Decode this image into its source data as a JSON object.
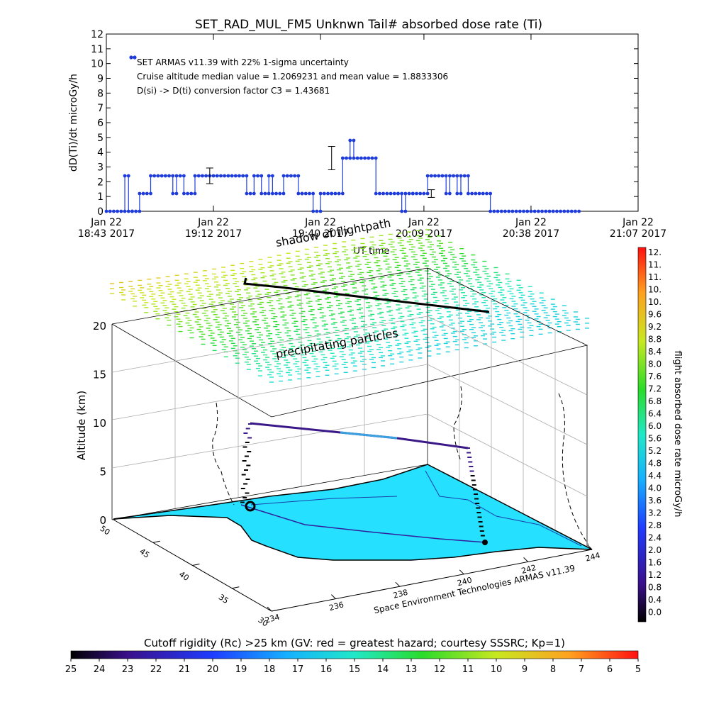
{
  "colors": {
    "series": "#1e3cdc",
    "ground": "#25e0ff",
    "low_track": "#3020a0"
  },
  "chart_data": [
    {
      "type": "line",
      "title": "SET_RAD_MUL_FM5 Unknwn Tail#  absorbed dose rate (Ti)",
      "ylabel": "dD(Ti)/dt microGy/h",
      "xlabel": "UT time",
      "ylim": [
        0,
        12
      ],
      "y_ticks": [
        "0",
        "1",
        "2",
        "3",
        "4",
        "5",
        "6",
        "7",
        "8",
        "9",
        "10",
        "11",
        "12"
      ],
      "x_range_min": [
        0,
        144
      ],
      "x_ticks": [
        {
          "t": 0,
          "line1": "Jan 22",
          "line2": "18:43 2017"
        },
        {
          "t": 29,
          "line1": "Jan 22",
          "line2": "19:12 2017"
        },
        {
          "t": 58,
          "line1": "Jan 22",
          "line2": "19:40 2017"
        },
        {
          "t": 86,
          "line1": "Jan 22",
          "line2": "20:09 2017"
        },
        {
          "t": 115,
          "line1": "Jan 22",
          "line2": "20:38 2017"
        },
        {
          "t": 144,
          "line1": "Jan 22",
          "line2": "21:07 2017"
        }
      ],
      "legend": {
        "series_name": "SET ARMAS v11.39 with 22% 1-sigma uncertainty",
        "note1": "Cruise altitude median value = 1.2069231 and mean value = 1.8833306",
        "note2": "D(si) -> D(ti) conversion factor C3 = 1.43681"
      },
      "series": [
        {
          "name": "SET ARMAS v11.39",
          "segments": [
            {
              "t": [
                0,
                5
              ],
              "y": 0
            },
            {
              "t": [
                5,
                6
              ],
              "y": 2.4
            },
            {
              "t": [
                6,
                7
              ],
              "y": 0
            },
            {
              "t": [
                7,
                9
              ],
              "y": 0
            },
            {
              "t": [
                9,
                12
              ],
              "y": 1.2
            },
            {
              "t": [
                12,
                18
              ],
              "y": 2.4
            },
            {
              "t": [
                18,
                19
              ],
              "y": 1.2
            },
            {
              "t": [
                19,
                21
              ],
              "y": 2.4
            },
            {
              "t": [
                21,
                24
              ],
              "y": 1.2
            },
            {
              "t": [
                24,
                38
              ],
              "y": 2.4
            },
            {
              "t": [
                38,
                40
              ],
              "y": 1.2
            },
            {
              "t": [
                40,
                42
              ],
              "y": 2.4
            },
            {
              "t": [
                42,
                44
              ],
              "y": 1.2
            },
            {
              "t": [
                44,
                45
              ],
              "y": 2.4
            },
            {
              "t": [
                45,
                48
              ],
              "y": 1.2
            },
            {
              "t": [
                48,
                52
              ],
              "y": 2.4
            },
            {
              "t": [
                52,
                53
              ],
              "y": 1.2
            },
            {
              "t": [
                53,
                56
              ],
              "y": 1.2
            },
            {
              "t": [
                56,
                58
              ],
              "y": 0
            },
            {
              "t": [
                58,
                61
              ],
              "y": 1.2
            },
            {
              "t": [
                61,
                64
              ],
              "y": 1.2
            },
            {
              "t": [
                64,
                66
              ],
              "y": 3.6
            },
            {
              "t": [
                66,
                67
              ],
              "y": 4.8
            },
            {
              "t": [
                67,
                73
              ],
              "y": 3.6
            },
            {
              "t": [
                73,
                79
              ],
              "y": 1.2
            },
            {
              "t": [
                79,
                80
              ],
              "y": 1.2
            },
            {
              "t": [
                80,
                81
              ],
              "y": 0
            },
            {
              "t": [
                81,
                83
              ],
              "y": 1.2
            },
            {
              "t": [
                83,
                87
              ],
              "y": 1.2
            },
            {
              "t": [
                87,
                92
              ],
              "y": 2.4
            },
            {
              "t": [
                92,
                93
              ],
              "y": 1.2
            },
            {
              "t": [
                93,
                95
              ],
              "y": 2.4
            },
            {
              "t": [
                95,
                96
              ],
              "y": 1.2
            },
            {
              "t": [
                96,
                98
              ],
              "y": 2.4
            },
            {
              "t": [
                98,
                104
              ],
              "y": 1.2
            },
            {
              "t": [
                104,
                128
              ],
              "y": 0
            }
          ]
        }
      ],
      "error_bars": [
        {
          "t": 28,
          "y": 2.4,
          "err": 0.53
        },
        {
          "t": 61,
          "y": 3.6,
          "err": 0.79
        },
        {
          "t": 88,
          "y": 1.2,
          "err": 0.26
        }
      ]
    },
    {
      "type": "3d-trajectory",
      "zlabel": "Altitude (km)",
      "z_ticks": [
        "0",
        "5",
        "10",
        "15",
        "20"
      ],
      "lon_ticks": [
        "234",
        "236",
        "238",
        "240",
        "242",
        "244"
      ],
      "lat_ticks": [
        "30",
        "35",
        "40",
        "45",
        "50"
      ],
      "xlabel": "Space Environment Technologies ARMAS v11.39",
      "labels": {
        "shadow": "shadow of flightpath",
        "precip": "precipitating particles"
      },
      "colorbar": {
        "title": "flight absorbed dose rate microGy/h",
        "ticks": [
          "12.",
          "11.",
          "11.",
          "10.",
          "10.",
          "9.6",
          "9.2",
          "8.8",
          "8.4",
          "8.0",
          "7.6",
          "7.2",
          "6.8",
          "6.4",
          "6.0",
          "5.6",
          "5.2",
          "4.8",
          "4.4",
          "4.0",
          "3.6",
          "3.2",
          "2.8",
          "2.4",
          "2.0",
          "1.6",
          "1.2",
          "0.8",
          "0.4",
          "0.0"
        ]
      },
      "rigidity_bar": {
        "title": "Cutoff rigidity (Rc) >25 km (GV: red = greatest hazard; courtesy SSSRC; Kp=1)",
        "ticks": [
          "25",
          "24",
          "23",
          "22",
          "21",
          "20",
          "19",
          "18",
          "17",
          "16",
          "15",
          "14",
          "13",
          "12",
          "11",
          "10",
          "9",
          "8",
          "7",
          "6",
          "5"
        ]
      }
    }
  ]
}
